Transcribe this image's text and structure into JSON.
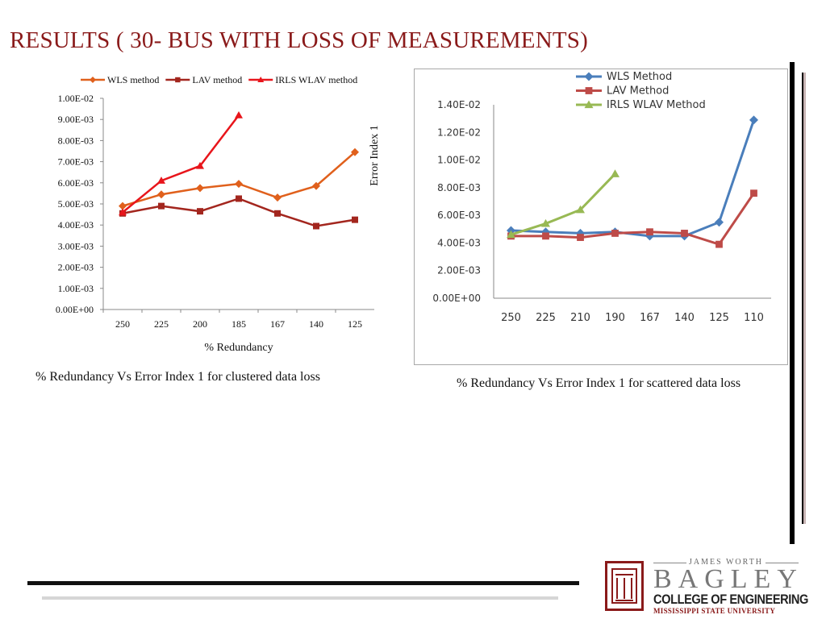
{
  "slide": {
    "title": "RESULTS ( 30- BUS WITH LOSS OF MEASUREMENTS)",
    "caption_left": "% Redundancy Vs Error Index 1 for clustered data loss",
    "caption_right": "% Redundancy Vs Error Index 1 for scattered data loss"
  },
  "logo": {
    "top_line": "JAMES WORTH",
    "name": "BAGLEY",
    "college": "COLLEGE OF ENGINEERING",
    "university": "MISSISSIPPI STATE UNIVERSITY"
  },
  "chart_data": [
    {
      "type": "line",
      "categories": [
        "250",
        "225",
        "200",
        "185",
        "167",
        "140",
        "125"
      ],
      "series": [
        {
          "name": "WLS method",
          "color": "#e0601c",
          "marker": "diamond",
          "values": [
            0.0049,
            0.00545,
            0.00575,
            0.00595,
            0.0053,
            0.00585,
            0.00745
          ]
        },
        {
          "name": "LAV method",
          "color": "#a3261e",
          "marker": "square",
          "values": [
            0.00455,
            0.0049,
            0.00465,
            0.00525,
            0.00455,
            0.00395,
            0.00425
          ]
        },
        {
          "name": "IRLS WLAV method",
          "color": "#e8151b",
          "marker": "triangle",
          "values": [
            0.0046,
            0.0061,
            0.0068,
            0.0092,
            null,
            null,
            null
          ]
        }
      ],
      "title": "",
      "xlabel": "% Redundancy",
      "ylabel": "Error Index 1",
      "ylim": [
        0,
        0.01
      ],
      "yticks": [
        "0.00E+00",
        "1.00E-03",
        "2.00E-03",
        "3.00E-03",
        "4.00E-03",
        "5.00E-03",
        "6.00E-03",
        "7.00E-03",
        "8.00E-03",
        "9.00E-03",
        "1.00E-02"
      ],
      "legend": "top",
      "grid": false
    },
    {
      "type": "line",
      "categories": [
        "250",
        "225",
        "210",
        "190",
        "167",
        "140",
        "125",
        "110"
      ],
      "series": [
        {
          "name": "WLS Method",
          "color": "#4a7ebb",
          "marker": "diamond",
          "values": [
            0.0049,
            0.0048,
            0.0047,
            0.0048,
            0.0045,
            0.0045,
            0.0055,
            0.0129
          ]
        },
        {
          "name": "LAV Method",
          "color": "#be4b48",
          "marker": "square",
          "values": [
            0.0045,
            0.0045,
            0.0044,
            0.0047,
            0.0048,
            0.0047,
            0.0039,
            0.0076
          ]
        },
        {
          "name": "IRLS WLAV Method",
          "color": "#98b954",
          "marker": "triangle",
          "values": [
            0.0046,
            0.0054,
            0.0064,
            0.009,
            null,
            null,
            null,
            null
          ]
        }
      ],
      "title": "",
      "xlabel": "",
      "ylabel": "",
      "ylim": [
        0,
        0.014
      ],
      "yticks": [
        "0.00E+00",
        "2.00E-03",
        "4.00E-03",
        "6.00E-03",
        "8.00E-03",
        "1.00E-02",
        "1.20E-02",
        "1.40E-02"
      ],
      "legend": "top",
      "grid": false
    }
  ]
}
